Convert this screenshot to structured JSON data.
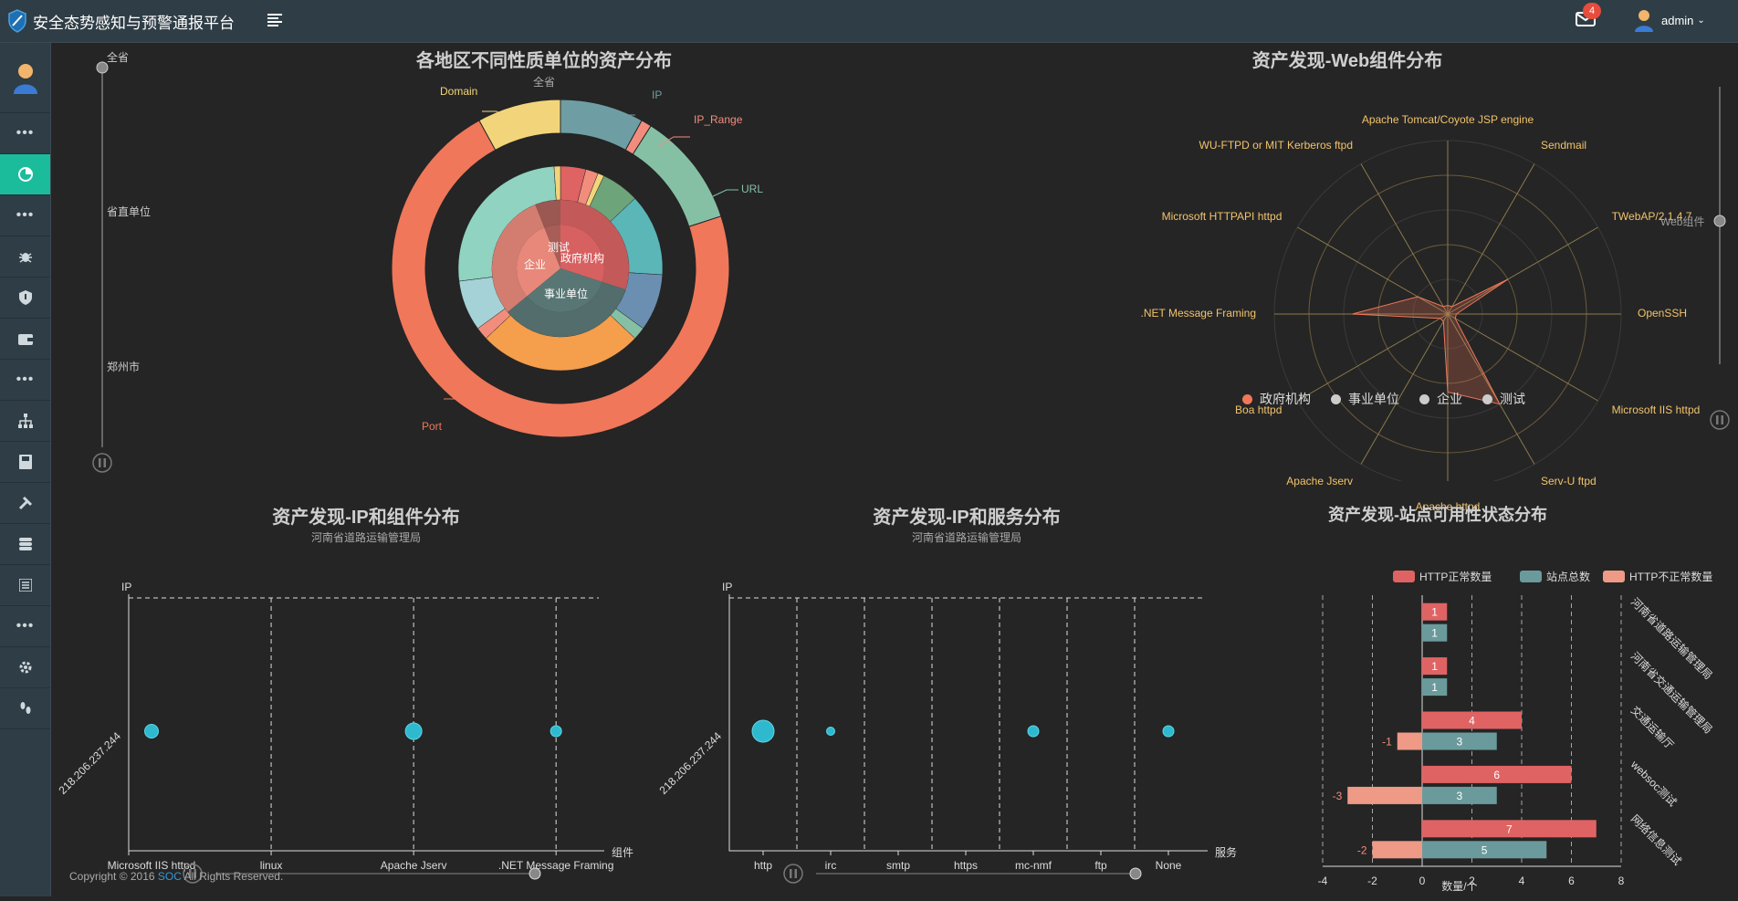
{
  "app": {
    "title": "安全态势感知与预警通报平台",
    "notifications": "4",
    "user": "admin"
  },
  "sidebar": {
    "dots": "•••"
  },
  "pie": {
    "title": "各地区不同性质单位的资产分布",
    "subtitle": "全省",
    "timeline": [
      "全省",
      "省直单位",
      "郑州市"
    ],
    "inner": [
      "测试",
      "企业",
      "政府机构",
      "事业单位"
    ],
    "outer_labels": [
      "IP",
      "IP_Range",
      "URL",
      "Domain",
      "Port"
    ],
    "outer_values": [
      {
        "name": "IP",
        "value": 8,
        "color": "#6e9ea3"
      },
      {
        "name": "IP_Range",
        "value": 1,
        "color": "#f28d7e"
      },
      {
        "name": "URL",
        "value": 11,
        "color": "#85c0a5"
      },
      {
        "name": "Port",
        "value": 72,
        "color": "#f0775a"
      },
      {
        "name": "Domain",
        "value": 8,
        "color": "#f2d57a"
      }
    ]
  },
  "radar": {
    "title": "资产发现-Web组件分布",
    "indicators": [
      "Apache Tomcat/Coyote JSP engine",
      "Sendmail",
      "TWebAP/2.1.4.7",
      "OpenSSH",
      "Microsoft IIS httpd",
      "Serv-U ftpd",
      "Apache httpd",
      "Apache Jserv",
      "Boa httpd",
      ".NET Message Framing",
      "Microsoft HTTPAPI httpd",
      "WU-FTPD or MIT Kerberos ftpd"
    ],
    "values": [
      0.05,
      0.05,
      0.4,
      0.05,
      0.05,
      0.6,
      0.45,
      0.05,
      0.05,
      0.55,
      0.2,
      0.05
    ],
    "legend": [
      "政府机构",
      "事业单位",
      "企业",
      "测试"
    ],
    "timeline_label": "Web组件"
  },
  "scatter1": {
    "title": "资产发现-IP和组件分布",
    "subtitle": "河南省道路运输管理局",
    "y_name": "IP",
    "x_name": "组件",
    "categories": [
      "Microsoft IIS httpd",
      "linux",
      "Apache Jserv",
      ".NET Message Framing"
    ],
    "y_category": "218.206.237.244",
    "points": [
      {
        "x": "Microsoft IIS httpd",
        "size": 3
      },
      {
        "x": "Apache Jserv",
        "size": 4
      },
      {
        "x": ".NET Message Framing",
        "size": 2
      }
    ]
  },
  "scatter2": {
    "title": "资产发现-IP和服务分布",
    "subtitle": "河南省道路运输管理局",
    "y_name": "IP",
    "x_name": "服务",
    "categories": [
      "http",
      "irc",
      "smtp",
      "https",
      "mc-nmf",
      "ftp",
      "None"
    ],
    "y_category": "218.206.237.244",
    "points": [
      {
        "x": "http",
        "size": 6
      },
      {
        "x": "irc",
        "size": 1
      },
      {
        "x": "mc-nmf",
        "size": 2
      },
      {
        "x": "None",
        "size": 2
      }
    ]
  },
  "bars": {
    "title": "资产发现-站点可用性状态分布",
    "legend": [
      "HTTP正常数量",
      "站点总数",
      "HTTP不正常数量"
    ],
    "x_name": "数量/个",
    "xlim": [
      -4,
      8
    ],
    "x_ticks": [
      "-4",
      "-2",
      "0",
      "2",
      "4",
      "6",
      "8"
    ],
    "categories": [
      "河南省道路运输管理局",
      "河南省交通运输管理局",
      "交通运输厅",
      "websoc测试",
      "网络信息测试"
    ],
    "series": [
      {
        "name": "HTTP正常数量",
        "values": [
          1,
          1,
          4,
          6,
          7
        ],
        "color": "#e06363"
      },
      {
        "name": "站点总数",
        "values": [
          1,
          1,
          3,
          3,
          5
        ],
        "color": "#6b9a9c"
      },
      {
        "name": "HTTP不正常数量",
        "values": [
          0,
          0,
          -1,
          -3,
          -2
        ],
        "color": "#ee9a86"
      }
    ]
  },
  "footer": {
    "prefix": "Copyright © 2016 ",
    "link": "SOC",
    "suffix": " All Rights Reserved."
  }
}
